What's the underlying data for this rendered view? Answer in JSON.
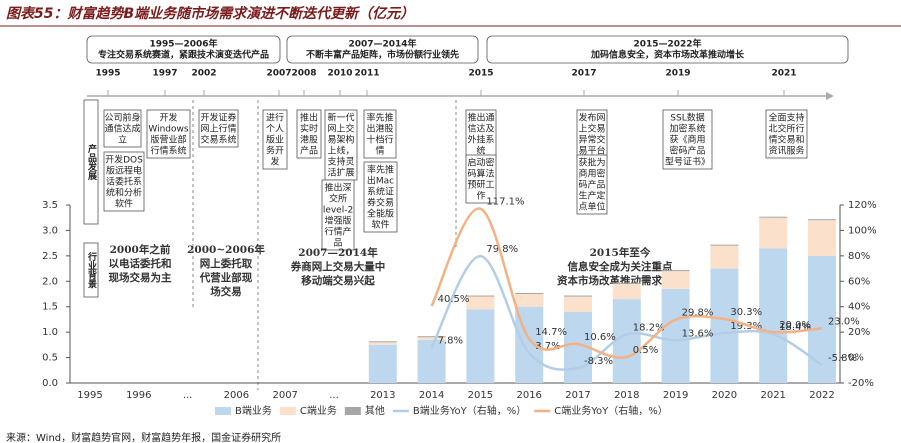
{
  "title": "图表55：财富趋势B端业务随市场需求演进不断迭代更新（亿元）",
  "phases": [
    {
      "years": "1995—2006年",
      "desc": "专注交易系统赛道，紧跟技术演变迭代产品"
    },
    {
      "years": "2007—2014年",
      "desc": "不断丰富产品矩阵，市场份额行业领先"
    },
    {
      "years": "2015—2022年",
      "desc": "加码信息安全，资本市场改革推动增长"
    }
  ],
  "timeline_years": [
    "1995",
    "1997",
    "2002",
    "2007",
    "2008",
    "2010",
    "2011",
    "2015",
    "2017",
    "2019",
    "2021"
  ],
  "side_labels": {
    "product": "产品发展",
    "industry": "行业背景"
  },
  "products": [
    {
      "lines": [
        "公司前身",
        "通信达成",
        "立"
      ]
    },
    {
      "lines": [
        "开发",
        "Windows",
        "版营业部",
        "行情系统"
      ]
    },
    {
      "lines": [
        "开发DOS",
        "版远程电",
        "话委托系",
        "统和分析",
        "软件"
      ]
    },
    {
      "lines": [
        "开发证券",
        "网上行情",
        "交易系统"
      ]
    },
    {
      "lines": [
        "进行",
        "个人",
        "版业",
        "务开",
        "发"
      ]
    },
    {
      "lines": [
        "推出",
        "实时",
        "港股",
        "产品"
      ]
    },
    {
      "lines": [
        "新一代",
        "网上交",
        "易架构",
        "上线，",
        "支持灵",
        "活扩展"
      ]
    },
    {
      "lines": [
        "推出深",
        "交所",
        "level-2",
        "增强版",
        "行情产",
        "品"
      ]
    },
    {
      "lines": [
        "率先推",
        "出港股",
        "十档行",
        "情"
      ]
    },
    {
      "lines": [
        "率先推",
        "出Mac",
        "系统证",
        "券交易",
        "全能版",
        "软件"
      ]
    },
    {
      "lines": [
        "推出通",
        "信达及",
        "外挂系",
        "统"
      ]
    },
    {
      "lines": [
        "启动密",
        "码算法",
        "预研工",
        "作"
      ]
    },
    {
      "lines": [
        "发布网",
        "上交易",
        "异常交",
        "易平台"
      ]
    },
    {
      "lines": [
        "获批为",
        "商用密",
        "码产品",
        "生产定",
        "点单位"
      ]
    },
    {
      "lines": [
        "SSL数据",
        "加密系统",
        "获《商用",
        "密码产品",
        "型号证书》"
      ]
    },
    {
      "lines": [
        "全面支持",
        "北交所行",
        "情交易和",
        "资讯服务"
      ]
    }
  ],
  "backgrounds": [
    {
      "lines": [
        "2000年之前",
        "以电话委托和",
        "现场交易为主"
      ]
    },
    {
      "lines": [
        "2000~2006年",
        "网上委托取",
        "代营业部现",
        "场交易"
      ]
    },
    {
      "lines": [
        "2007—2014年",
        "券商网上交易大量中",
        "移动端交易兴起"
      ]
    },
    {
      "lines": [
        "2015年至今",
        "信息安全成为关注重点",
        "资本市场改革推动需求更新"
      ]
    }
  ],
  "chart_data": {
    "type": "bar",
    "categories": [
      "1995",
      "1996",
      "...",
      "2006",
      "2007",
      "...",
      "2013",
      "2014",
      "2015",
      "2016",
      "2017",
      "2018",
      "2019",
      "2020",
      "2021",
      "2022"
    ],
    "series": [
      {
        "name": "B端业务",
        "type": "bar",
        "color": "#bdd7ee",
        "values": [
          null,
          null,
          null,
          null,
          null,
          null,
          0.75,
          0.85,
          1.45,
          1.5,
          1.4,
          1.65,
          1.85,
          2.25,
          2.65,
          2.5
        ]
      },
      {
        "name": "C端业务",
        "type": "bar",
        "color": "#fbe0cc",
        "values": [
          null,
          null,
          null,
          null,
          null,
          null,
          0.05,
          0.05,
          0.25,
          0.25,
          0.3,
          0.3,
          0.35,
          0.45,
          0.6,
          0.7
        ]
      },
      {
        "name": "其他",
        "type": "bar",
        "color": "#a6a6a6",
        "values": [
          null,
          null,
          null,
          null,
          null,
          null,
          0.02,
          0.02,
          0.02,
          0.02,
          0.02,
          0.02,
          0.02,
          0.02,
          0.02,
          0.02
        ]
      },
      {
        "name": "B端业务YoY（右轴，%）",
        "type": "line",
        "axis": "y2",
        "color": "#b4cde6",
        "values": [
          null,
          null,
          null,
          null,
          null,
          null,
          null,
          7.8,
          79.8,
          3.7,
          -8.3,
          18.2,
          13.6,
          19.3,
          18.4,
          -5.8
        ],
        "value_labels": [
          null,
          null,
          null,
          null,
          null,
          null,
          null,
          "7.8%",
          "79.8%",
          "3.7%",
          "-8.3%",
          "18.2%",
          "13.6%",
          "19.3%",
          "18.4%",
          "-5.8%"
        ]
      },
      {
        "name": "C端业务YoY（右轴，%）",
        "type": "line",
        "axis": "y2",
        "color": "#f4b183",
        "values": [
          null,
          null,
          null,
          null,
          null,
          null,
          null,
          40.5,
          117.1,
          14.7,
          10.6,
          0.5,
          29.8,
          30.3,
          20.0,
          23.0
        ],
        "value_labels": [
          null,
          null,
          null,
          null,
          null,
          null,
          null,
          "40.5%",
          "117.1%",
          "14.7%",
          "10.6%",
          "0.5%",
          "29.8%",
          "30.3%",
          "20.0%",
          "23.0%"
        ]
      }
    ],
    "ylim": [
      0,
      3.5
    ],
    "yticks": [
      {
        "value": 0,
        "label": "0.0"
      },
      0.5,
      {
        "value": 1,
        "label": "1.0"
      },
      1.5,
      {
        "value": 2,
        "label": "2.0"
      },
      2.5,
      {
        "value": 3,
        "label": "3.0"
      },
      3.5
    ],
    "y2lim": [
      -20,
      120
    ],
    "y2ticks": [
      {
        "value": -20,
        "label": "-20%"
      },
      {
        "value": 0,
        "label": "0%"
      },
      {
        "value": 20,
        "label": "20%"
      },
      {
        "value": 40,
        "label": "40%"
      },
      {
        "value": 60,
        "label": "60%"
      },
      {
        "value": 80,
        "label": "80%"
      },
      {
        "value": 100,
        "label": "100%"
      },
      {
        "value": 120,
        "label": "120%"
      }
    ],
    "legend": "bottom"
  },
  "source": "来源：Wind，财富趋势官网，财富趋势年报，国金证券研究所"
}
